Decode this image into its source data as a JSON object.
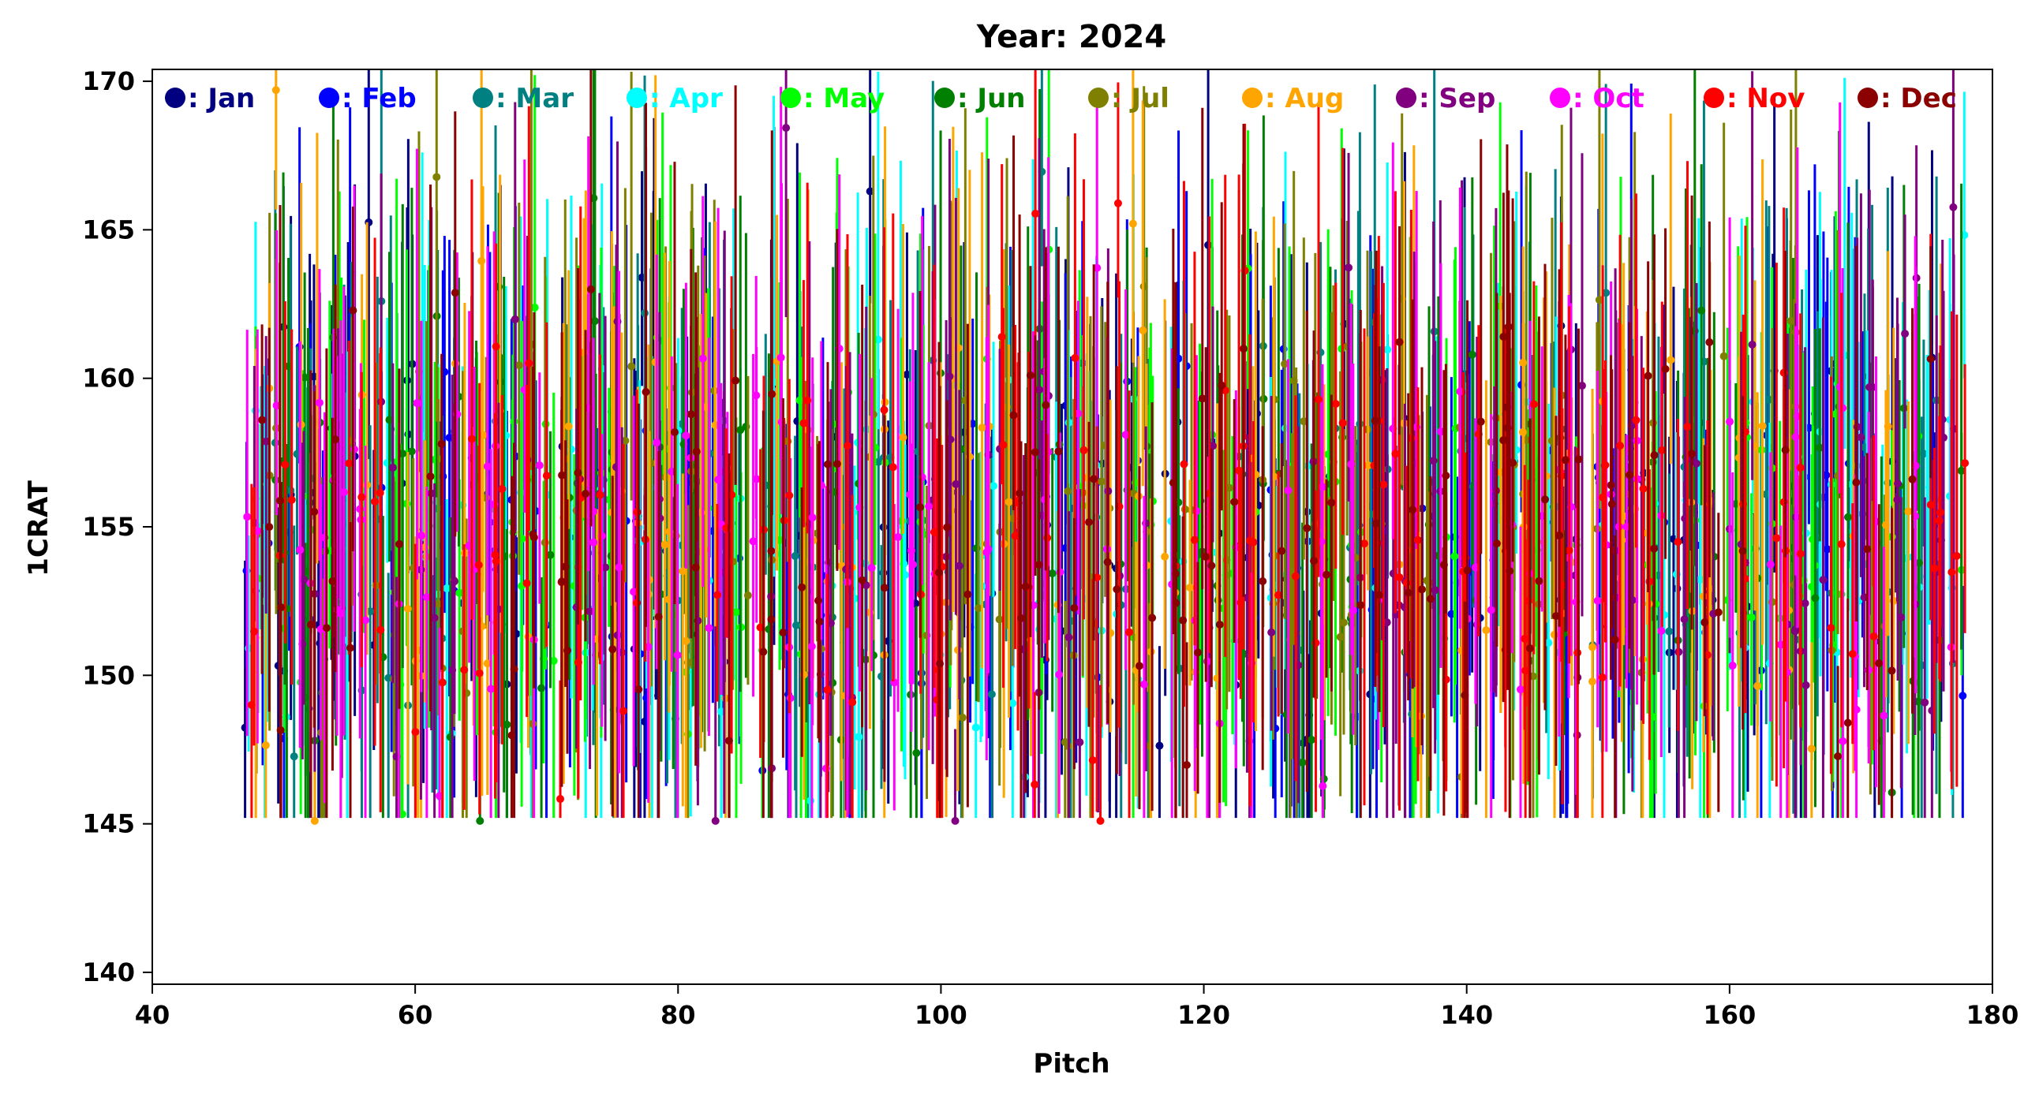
{
  "chart_data": {
    "type": "scatter",
    "title": "Year: 2024",
    "xlabel": "Pitch",
    "ylabel": "1CRAT",
    "xlim": [
      40,
      180
    ],
    "ylim": [
      139.6,
      170.4
    ],
    "xticks": [
      40,
      60,
      80,
      100,
      120,
      140,
      160,
      180
    ],
    "yticks": [
      140,
      145,
      150,
      155,
      160,
      165,
      170
    ],
    "legend_position": "top (horizontal row inside plot)",
    "grid": false,
    "error_bars": true,
    "series": [
      {
        "name": "Jan",
        "color": "#000080",
        "seed": 11
      },
      {
        "name": "Feb",
        "color": "#0000ff",
        "seed": 23
      },
      {
        "name": "Mar",
        "color": "#008080",
        "seed": 37
      },
      {
        "name": "Apr",
        "color": "#00ffff",
        "seed": 41
      },
      {
        "name": "May",
        "color": "#00ff00",
        "seed": 53
      },
      {
        "name": "Jun",
        "color": "#008000",
        "seed": 67
      },
      {
        "name": "Jul",
        "color": "#808000",
        "seed": 71
      },
      {
        "name": "Aug",
        "color": "#ffa500",
        "seed": 83
      },
      {
        "name": "Sep",
        "color": "#800080",
        "seed": 97
      },
      {
        "name": "Oct",
        "color": "#ff00ff",
        "seed": 101
      },
      {
        "name": "Nov",
        "color": "#ff0000",
        "seed": 113
      },
      {
        "name": "Dec",
        "color": "#8b0000",
        "seed": 127
      }
    ],
    "x_range_of_points": [
      47,
      178
    ],
    "typical_y_range": [
      145,
      166
    ],
    "typical_y_center": 154.5,
    "points_per_series": 140,
    "notes": "Dense overlapping monthly series; values approximated as generated scatter with vertical error bars."
  }
}
